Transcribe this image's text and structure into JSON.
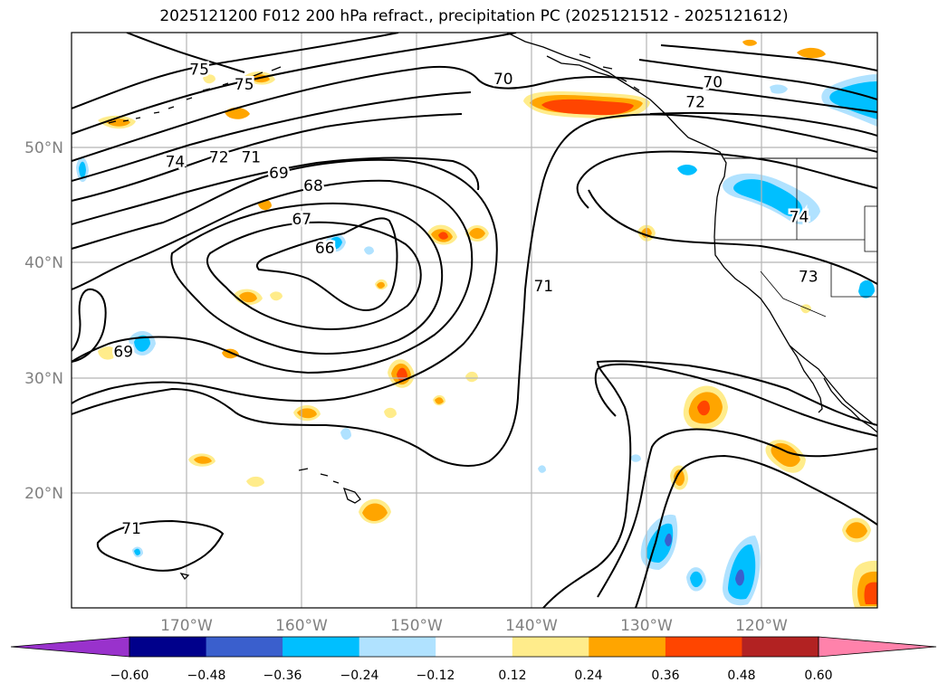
{
  "title": "2025121200 F012 200 hPa refract., precipitation PC (2025121512 - 2025121612)",
  "map": {
    "lon_ticks": [
      "170°W",
      "160°W",
      "150°W",
      "140°W",
      "130°W",
      "120°W"
    ],
    "lat_ticks": [
      "50°N",
      "40°N",
      "30°N",
      "20°N"
    ],
    "contour_labels": [
      {
        "text": "75",
        "lon": -168.9,
        "lat": 56.8
      },
      {
        "text": "75",
        "lon": -165.0,
        "lat": 55.5
      },
      {
        "text": "74",
        "lon": -171.0,
        "lat": 48.8
      },
      {
        "text": "72",
        "lon": -167.2,
        "lat": 49.2
      },
      {
        "text": "71",
        "lon": -164.4,
        "lat": 49.2
      },
      {
        "text": "69",
        "lon": -162.0,
        "lat": 47.8
      },
      {
        "text": "68",
        "lon": -159.0,
        "lat": 46.7
      },
      {
        "text": "67",
        "lon": -160.0,
        "lat": 43.8
      },
      {
        "text": "66",
        "lon": -158.0,
        "lat": 41.3
      },
      {
        "text": "70",
        "lon": -142.5,
        "lat": 56.0
      },
      {
        "text": "70",
        "lon": -124.3,
        "lat": 55.7
      },
      {
        "text": "72",
        "lon": -125.8,
        "lat": 54.0
      },
      {
        "text": "74",
        "lon": -116.8,
        "lat": 44.0
      },
      {
        "text": "73",
        "lon": -116.0,
        "lat": 38.8
      },
      {
        "text": "71",
        "lon": -139.0,
        "lat": 38.0
      },
      {
        "text": "69",
        "lon": -175.5,
        "lat": 32.3
      },
      {
        "text": "71",
        "lon": -174.8,
        "lat": 16.9
      }
    ]
  },
  "colorbar": {
    "tick_labels": [
      "−0.60",
      "−0.48",
      "−0.36",
      "−0.24",
      "−0.12",
      "0.12",
      "0.24",
      "0.36",
      "0.48",
      "0.60"
    ],
    "colors": [
      "#9932cc",
      "#00008b",
      "#3a5fcd",
      "#00bfff",
      "#b0e2ff",
      "#ffffff",
      "#ffec8b",
      "#ffa500",
      "#ff4500",
      "#b22222",
      "#ff82ab"
    ]
  },
  "precip_colors": {
    "neg_light": "#b0e2ff",
    "neg_mid": "#00bfff",
    "neg_strong": "#3a5fcd",
    "pos_light": "#ffec8b",
    "pos_mid": "#ffa500",
    "pos_strong": "#ff4500"
  }
}
